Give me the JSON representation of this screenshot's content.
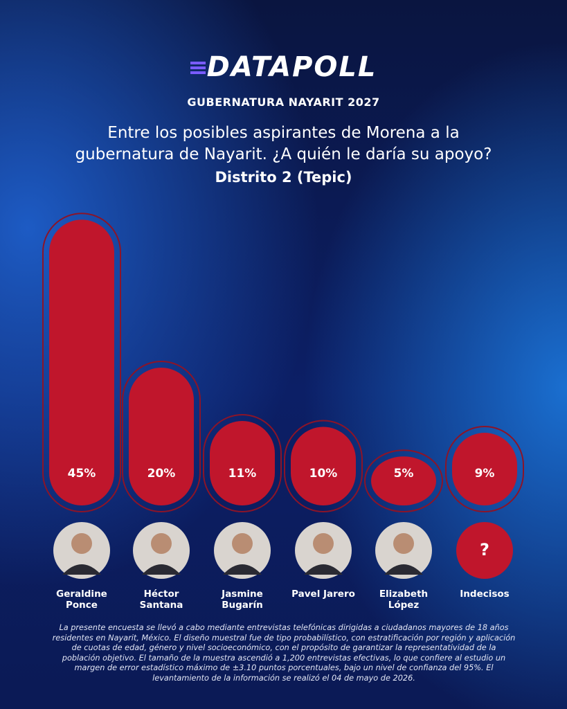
{
  "chart_data": {
    "type": "bar",
    "brand": "DATAPOLL",
    "subtitle": "GUBERNATURA NAYARIT 2027",
    "title": "Entre los posibles aspirantes de Morena a la gubernatura de Nayarit. ¿A quién le daría su apoyo?",
    "district": "Distrito 2 (Tepic)",
    "categories": [
      "Geraldine Ponce",
      "Héctor Santana",
      "Jasmine Bugarín",
      "Pavel Jarero",
      "Elizabeth López",
      "Indecisos"
    ],
    "values": [
      45,
      20,
      11,
      10,
      5,
      9
    ],
    "value_labels": [
      "45%",
      "20%",
      "11%",
      "10%",
      "5%",
      "9%"
    ],
    "color": "#c0162c",
    "unknown_label": "?",
    "footnote": "La presente encuesta se llevó a cabo mediante entrevistas telefónicas dirigidas a ciudadanos mayores de 18 años residentes en Nayarit, México. El diseño muestral fue de tipo probabilístico, con estratificación por región y aplicación de cuotas de edad, género y nivel socioeconómico, con el propósito de garantizar la representatividad de la población objetivo. El tamaño de la muestra ascendió a 1,200 entrevistas efectivas, lo que confiere al estudio un margen de error estadístico máximo de ±3.10 puntos porcentuales, bajo un nivel de confianza del 95%. El levantamiento de la información se realizó el 04 de mayo de 2026."
  }
}
